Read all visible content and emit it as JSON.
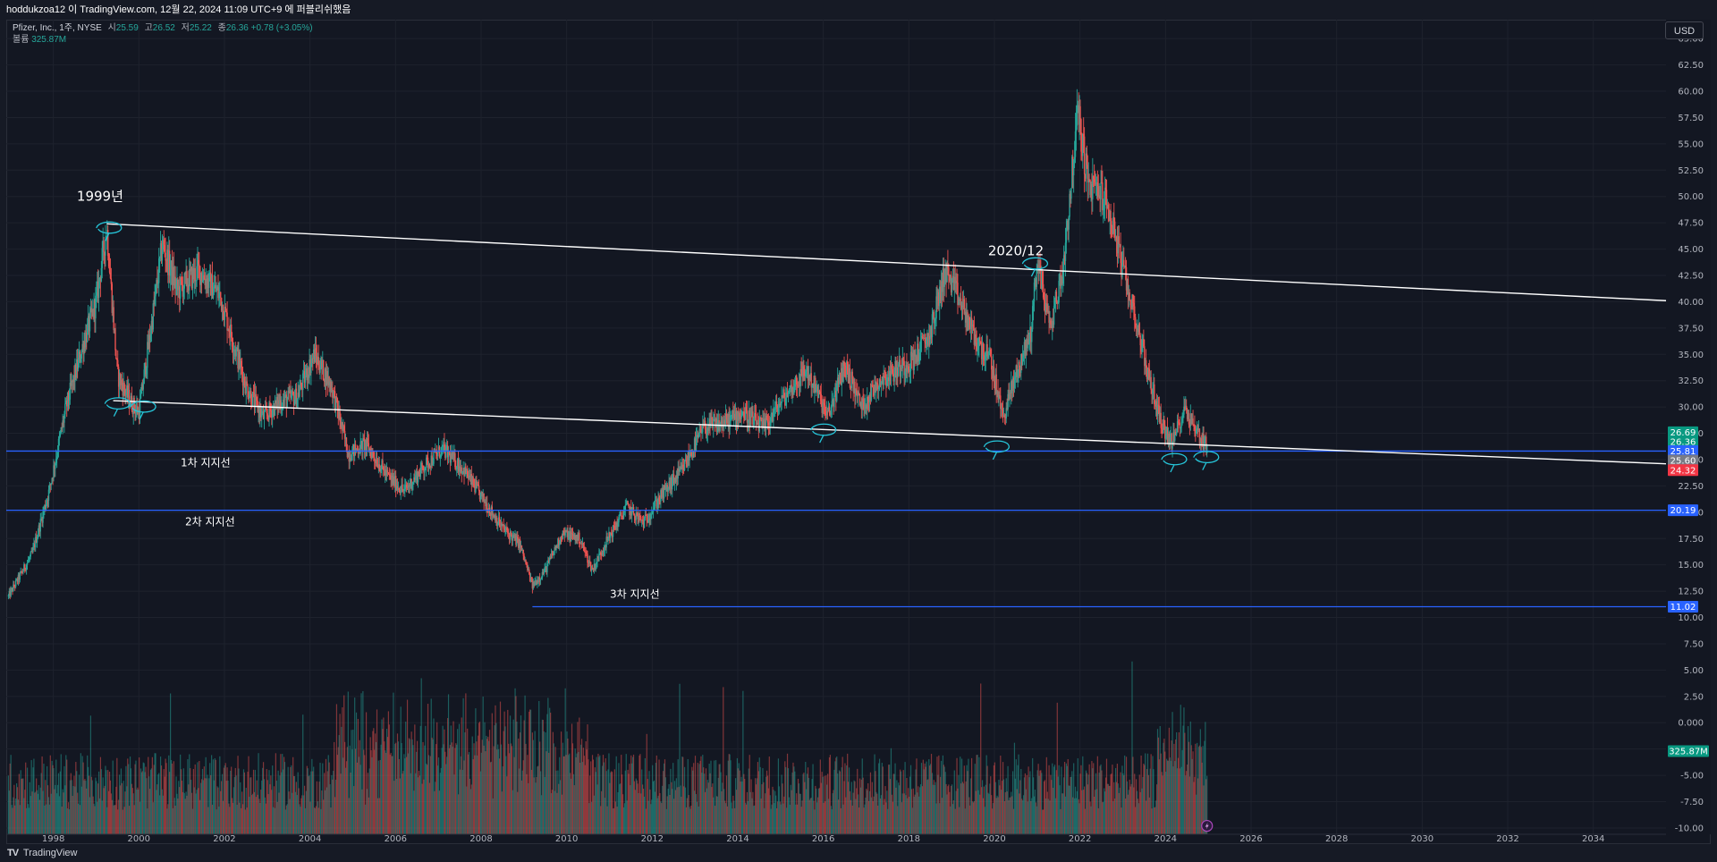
{
  "header": {
    "text": "hoddukzoa12 이 TradingView.com, 12월 22, 2024 11:09 UTC+9 에 퍼블리쉬했음"
  },
  "legend": {
    "symbol": "Pfizer, Inc., 1주, NYSE",
    "open_label": "시",
    "open": "25.59",
    "high_label": "고",
    "high": "26.52",
    "low_label": "저",
    "low": "25.22",
    "close_label": "종",
    "close": "26.36",
    "change": "+0.78 (+3.05%)",
    "volume_label": "볼륨",
    "volume": "325.87M"
  },
  "currency": "USD",
  "footer": {
    "logo": "TV",
    "brand": "TradingView"
  },
  "colors": {
    "up": "#26a69a",
    "down": "#ef5350",
    "support": "#2962ff",
    "trendline": "#ffffff",
    "annotation": "#26c6da",
    "grid": "#1e222d",
    "axis_text": "#b2b5be"
  },
  "chart_data": {
    "type": "candlestick",
    "timeframe": "1W",
    "x_range": [
      1996.9,
      2035.7
    ],
    "y_range": [
      -10.6,
      66.8
    ],
    "y_ticks": [
      "65.00",
      "62.50",
      "60.00",
      "57.50",
      "55.00",
      "52.50",
      "50.00",
      "47.50",
      "45.00",
      "42.50",
      "40.00",
      "37.50",
      "35.00",
      "32.50",
      "30.00",
      "27.50",
      "25.00",
      "22.50",
      "20.00",
      "17.50",
      "15.00",
      "12.50",
      "10.00",
      "7.50",
      "5.00",
      "2.50",
      "0.000",
      "-2.50",
      "-5.00",
      "-7.50",
      "-10.00"
    ],
    "x_ticks": [
      "1998",
      "2000",
      "2002",
      "2004",
      "2006",
      "2008",
      "2010",
      "2012",
      "2014",
      "2016",
      "2018",
      "2020",
      "2022",
      "2024",
      "2026",
      "2028",
      "2030",
      "2032",
      "2034"
    ],
    "price_path": [
      [
        1996.95,
        12.0
      ],
      [
        1997.5,
        16.0
      ],
      [
        1997.9,
        22.0
      ],
      [
        1998.3,
        30.0
      ],
      [
        1998.7,
        36.0
      ],
      [
        1999.0,
        40.0
      ],
      [
        1999.25,
        47.0
      ],
      [
        1999.5,
        33.0
      ],
      [
        1999.8,
        30.5
      ],
      [
        2000.0,
        29.5
      ],
      [
        2000.3,
        38.0
      ],
      [
        2000.55,
        45.5
      ],
      [
        2000.9,
        41.0
      ],
      [
        2001.4,
        43.0
      ],
      [
        2001.9,
        40.5
      ],
      [
        2002.5,
        32.0
      ],
      [
        2002.9,
        29.0
      ],
      [
        2003.3,
        30.5
      ],
      [
        2003.7,
        31.0
      ],
      [
        2004.1,
        35.0
      ],
      [
        2004.5,
        32.0
      ],
      [
        2004.9,
        25.5
      ],
      [
        2005.3,
        26.5
      ],
      [
        2005.8,
        23.5
      ],
      [
        2006.2,
        22.0
      ],
      [
        2006.7,
        24.5
      ],
      [
        2007.1,
        26.0
      ],
      [
        2007.6,
        24.0
      ],
      [
        2008.0,
        21.5
      ],
      [
        2008.5,
        18.5
      ],
      [
        2008.9,
        17.0
      ],
      [
        2009.2,
        13.0
      ],
      [
        2009.5,
        14.5
      ],
      [
        2009.9,
        18.0
      ],
      [
        2010.3,
        17.5
      ],
      [
        2010.6,
        14.5
      ],
      [
        2010.9,
        17.0
      ],
      [
        2011.4,
        20.5
      ],
      [
        2011.8,
        19.0
      ],
      [
        2012.2,
        21.5
      ],
      [
        2012.7,
        24.0
      ],
      [
        2013.2,
        28.0
      ],
      [
        2013.7,
        28.5
      ],
      [
        2014.1,
        29.5
      ],
      [
        2014.6,
        28.0
      ],
      [
        2015.1,
        31.0
      ],
      [
        2015.6,
        33.5
      ],
      [
        2015.9,
        31.0
      ],
      [
        2016.1,
        29.0
      ],
      [
        2016.5,
        34.0
      ],
      [
        2016.9,
        30.0
      ],
      [
        2017.3,
        32.5
      ],
      [
        2017.7,
        33.5
      ],
      [
        2018.1,
        34.5
      ],
      [
        2018.5,
        37.0
      ],
      [
        2018.85,
        43.0
      ],
      [
        2019.2,
        40.0
      ],
      [
        2019.6,
        36.0
      ],
      [
        2019.9,
        34.5
      ],
      [
        2020.2,
        29.0
      ],
      [
        2020.5,
        33.0
      ],
      [
        2020.85,
        37.0
      ],
      [
        2021.0,
        44.0
      ],
      [
        2021.3,
        37.5
      ],
      [
        2021.6,
        43.0
      ],
      [
        2021.95,
        58.0
      ],
      [
        2022.2,
        51.0
      ],
      [
        2022.5,
        50.5
      ],
      [
        2022.8,
        47.0
      ],
      [
        2023.0,
        43.0
      ],
      [
        2023.3,
        38.5
      ],
      [
        2023.6,
        33.0
      ],
      [
        2023.9,
        28.5
      ],
      [
        2024.15,
        26.5
      ],
      [
        2024.45,
        30.0
      ],
      [
        2024.75,
        27.5
      ],
      [
        2024.97,
        26.36
      ]
    ],
    "last_candle": {
      "open": 25.59,
      "high": 26.52,
      "low": 25.22,
      "close": 26.36
    },
    "trend_lines": [
      {
        "x1": 1999.25,
        "y1": 47.4,
        "x2": 2035.7,
        "y2": 40.1
      },
      {
        "x1": 1999.4,
        "y1": 30.6,
        "x2": 2035.7,
        "y2": 24.6
      }
    ],
    "support_lines": [
      {
        "label": "1차 지지선",
        "price": 25.81,
        "x_start": 1996.9
      },
      {
        "label": "2차 지지선",
        "price": 20.19,
        "x_start": 1996.9
      },
      {
        "label": "3차 지지선",
        "price": 11.02,
        "x_start": 2009.2
      }
    ],
    "annotations": [
      {
        "text": "1999년",
        "x": 1998.55,
        "y": 49.6
      },
      {
        "text": "2020/12",
        "x": 2019.85,
        "y": 44.4
      }
    ],
    "annotation_circles": [
      {
        "x": 1999.3,
        "y": 47.0
      },
      {
        "x": 1999.5,
        "y": 30.3
      },
      {
        "x": 2000.1,
        "y": 30.0
      },
      {
        "x": 2016.0,
        "y": 27.8
      },
      {
        "x": 2020.05,
        "y": 26.2
      },
      {
        "x": 2020.95,
        "y": 43.6
      },
      {
        "x": 2024.2,
        "y": 25.0
      },
      {
        "x": 2024.95,
        "y": 25.2
      }
    ],
    "price_labels": [
      {
        "value": "26.69",
        "price": 27.6,
        "color": "#089981"
      },
      {
        "value": "26.36",
        "price": 26.7,
        "color": "#089981"
      },
      {
        "value": "25.81",
        "price": 25.81,
        "color": "#2962ff"
      },
      {
        "value": "25.60",
        "price": 24.9,
        "color": "#787b86"
      },
      {
        "value": "24.32",
        "price": 24.0,
        "color": "#f23645"
      },
      {
        "value": "20.19",
        "price": 20.19,
        "color": "#2962ff"
      },
      {
        "value": "11.02",
        "price": 11.02,
        "color": "#2962ff"
      },
      {
        "value": "325.87M",
        "price": -2.7,
        "color": "#089981"
      }
    ],
    "volume": {
      "latest_label": "325.87M",
      "max_height_price": 8.7,
      "baseline_price": -10.6
    }
  }
}
